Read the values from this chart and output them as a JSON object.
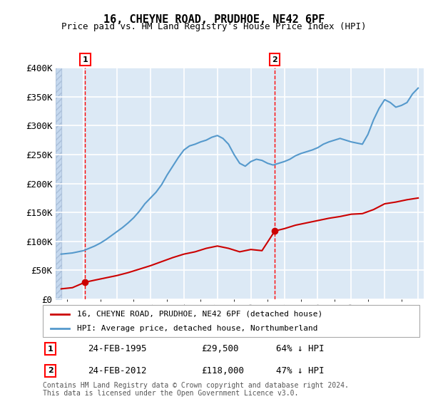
{
  "title": "16, CHEYNE ROAD, PRUDHOE, NE42 6PF",
  "subtitle": "Price paid vs. HM Land Registry's House Price Index (HPI)",
  "xlabel": "",
  "ylabel": "",
  "ylim": [
    0,
    400000
  ],
  "yticks": [
    0,
    50000,
    100000,
    150000,
    200000,
    250000,
    300000,
    350000,
    400000
  ],
  "ytick_labels": [
    "£0",
    "£50K",
    "£100K",
    "£150K",
    "£200K",
    "£250K",
    "£300K",
    "£350K",
    "£400K"
  ],
  "xlim_start": 1992.5,
  "xlim_end": 2025.5,
  "background_color": "#dce9f5",
  "hatch_color": "#c5d8ee",
  "grid_color": "#ffffff",
  "sale1_date": 1995.15,
  "sale1_price": 29500,
  "sale1_label": "1",
  "sale2_date": 2012.15,
  "sale2_price": 118000,
  "sale2_label": "2",
  "property_color": "#cc0000",
  "hpi_color": "#5599cc",
  "legend_property": "16, CHEYNE ROAD, PRUDHOE, NE42 6PF (detached house)",
  "legend_hpi": "HPI: Average price, detached house, Northumberland",
  "annotation1_date": "24-FEB-1995",
  "annotation1_price": "£29,500",
  "annotation1_pct": "64% ↓ HPI",
  "annotation2_date": "24-FEB-2012",
  "annotation2_price": "£118,000",
  "annotation2_pct": "47% ↓ HPI",
  "footer": "Contains HM Land Registry data © Crown copyright and database right 2024.\nThis data is licensed under the Open Government Licence v3.0.",
  "hpi_years": [
    1993,
    1993.5,
    1994,
    1994.5,
    1995,
    1995.5,
    1996,
    1996.5,
    1997,
    1997.5,
    1998,
    1998.5,
    1999,
    1999.5,
    2000,
    2000.5,
    2001,
    2001.5,
    2002,
    2002.5,
    2003,
    2003.5,
    2004,
    2004.5,
    2005,
    2005.5,
    2006,
    2006.5,
    2007,
    2007.5,
    2008,
    2008.5,
    2009,
    2009.5,
    2010,
    2010.5,
    2011,
    2011.5,
    2012,
    2012.5,
    2013,
    2013.5,
    2014,
    2014.5,
    2015,
    2015.5,
    2016,
    2016.5,
    2017,
    2017.5,
    2018,
    2018.5,
    2019,
    2019.5,
    2020,
    2020.5,
    2021,
    2021.5,
    2022,
    2022.5,
    2023,
    2023.5,
    2024,
    2024.5,
    2025
  ],
  "hpi_values": [
    78000,
    79000,
    80000,
    82000,
    84000,
    88000,
    92000,
    97000,
    103000,
    110000,
    117000,
    124000,
    132000,
    141000,
    152000,
    165000,
    175000,
    185000,
    198000,
    215000,
    230000,
    245000,
    258000,
    265000,
    268000,
    272000,
    275000,
    280000,
    283000,
    278000,
    268000,
    250000,
    235000,
    230000,
    238000,
    242000,
    240000,
    235000,
    232000,
    235000,
    238000,
    242000,
    248000,
    252000,
    255000,
    258000,
    262000,
    268000,
    272000,
    275000,
    278000,
    275000,
    272000,
    270000,
    268000,
    285000,
    310000,
    330000,
    345000,
    340000,
    332000,
    335000,
    340000,
    355000,
    365000
  ],
  "prop_years": [
    1993,
    1994,
    1995.15,
    1996,
    1997,
    1998,
    1999,
    2000,
    2001,
    2002,
    2003,
    2004,
    2005,
    2006,
    2007,
    2008,
    2009,
    2010,
    2011,
    2012.15,
    2013,
    2014,
    2015,
    2016,
    2017,
    2018,
    2019,
    2020,
    2021,
    2022,
    2023,
    2024,
    2025
  ],
  "prop_values": [
    18000,
    20000,
    29500,
    33000,
    37000,
    41000,
    46000,
    52000,
    58000,
    65000,
    72000,
    78000,
    82000,
    88000,
    92000,
    88000,
    82000,
    86000,
    84000,
    118000,
    122000,
    128000,
    132000,
    136000,
    140000,
    143000,
    147000,
    148000,
    155000,
    165000,
    168000,
    172000,
    175000
  ]
}
